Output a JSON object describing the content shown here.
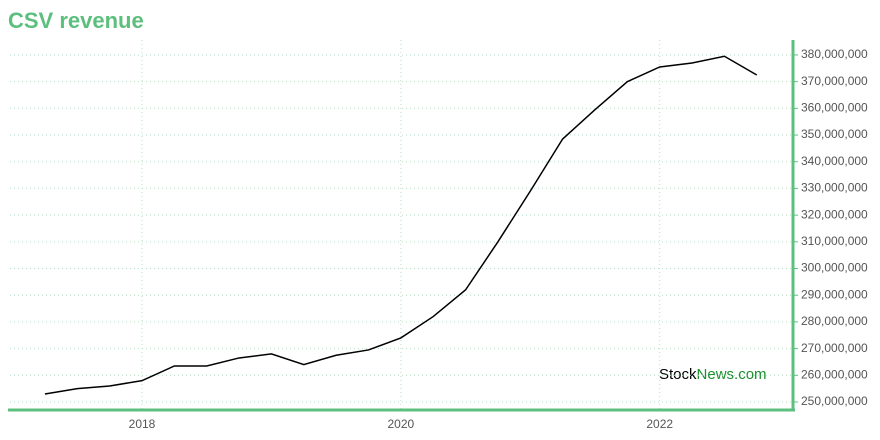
{
  "chart_data": {
    "type": "line",
    "title": "CSV revenue",
    "x": [
      2017.25,
      2017.5,
      2017.75,
      2018,
      2018.25,
      2018.5,
      2018.75,
      2019,
      2019.25,
      2019.5,
      2019.75,
      2020,
      2020.25,
      2020.5,
      2020.75,
      2021,
      2021.25,
      2021.5,
      2021.75,
      2022,
      2022.25,
      2022.5,
      2022.75
    ],
    "series": [
      {
        "color": "#000000",
        "values": [
          253000000,
          255000000,
          256000000,
          258000000,
          263500000,
          263500000,
          266500000,
          268000000,
          264000000,
          267500000,
          269500000,
          274000000,
          282000000,
          292000000,
          310000000,
          329000000,
          348500000,
          359500000,
          370000000,
          375500000,
          377000000,
          379500000,
          372500000
        ]
      }
    ],
    "xlim": [
      2016.98,
      2023.03
    ],
    "xticks": [
      2018,
      2020,
      2022
    ],
    "ylim": [
      247000000,
      385600000
    ],
    "yticks": [
      {
        "value": 250000000,
        "label": "250,000,000"
      },
      {
        "value": 260000000,
        "label": "260,000,000"
      },
      {
        "value": 270000000,
        "label": "270,000,000"
      },
      {
        "value": 280000000,
        "label": "280,000,000"
      },
      {
        "value": 290000000,
        "label": "290,000,000"
      },
      {
        "value": 300000000,
        "label": "300,000,000"
      },
      {
        "value": 310000000,
        "label": "310,000,000"
      },
      {
        "value": 320000000,
        "label": "320,000,000"
      },
      {
        "value": 330000000,
        "label": "330,000,000"
      },
      {
        "value": 340000000,
        "label": "340,000,000"
      },
      {
        "value": 350000000,
        "label": "350,000,000"
      },
      {
        "value": 360000000,
        "label": "360,000,000"
      },
      {
        "value": 370000000,
        "label": "370,000,000"
      },
      {
        "value": 380000000,
        "label": "380,000,000"
      }
    ],
    "grid": true,
    "axis_color": "#5dbf7d",
    "watermark": [
      "Stock",
      "News.com"
    ]
  }
}
